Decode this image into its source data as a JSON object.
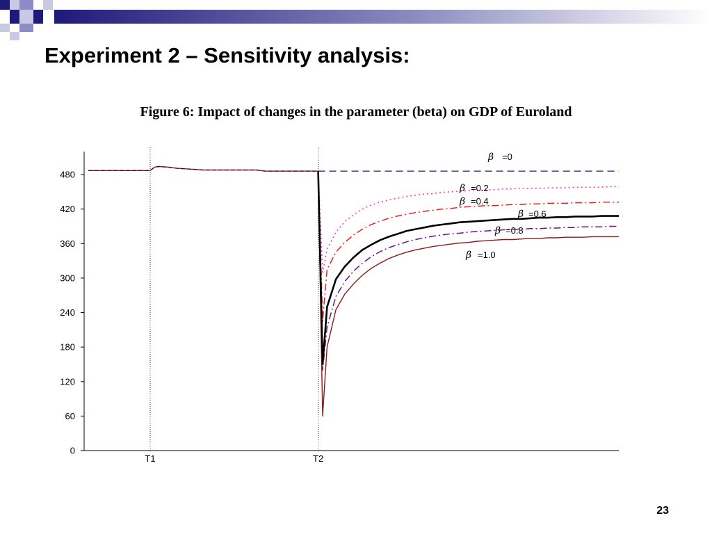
{
  "slide": {
    "title": "Experiment 2 – Sensitivity analysis:",
    "caption": "Figure 6: Impact of changes in the parameter (beta) on GDP of  Euroland",
    "page_number": "23",
    "colors": {
      "deco_dark": "#1f1a7a",
      "deco_mid": "#8c8cc8",
      "deco_light": "#c9c9e6"
    }
  },
  "chart_data": {
    "type": "line",
    "title": "",
    "xlabel": "",
    "ylabel": "",
    "ylim": [
      0,
      520
    ],
    "xlim": [
      0,
      60
    ],
    "yticks": [
      0,
      60,
      120,
      180,
      240,
      300,
      360,
      420,
      480
    ],
    "xticks": [
      {
        "x": 7,
        "label": "T1"
      },
      {
        "x": 26,
        "label": "T2"
      }
    ],
    "grid": false,
    "baseline": {
      "x": [
        0,
        1,
        2,
        3,
        4,
        5,
        6,
        7,
        7.5,
        8,
        9,
        10,
        11,
        12,
        13,
        14,
        15,
        16,
        17,
        18,
        19,
        20,
        21,
        22,
        23,
        24,
        25,
        26
      ],
      "y": [
        487,
        487,
        487,
        487,
        487,
        487,
        487,
        487,
        493,
        494,
        493,
        491,
        490,
        489,
        488,
        488,
        488,
        488,
        488,
        488,
        488,
        486,
        486,
        486,
        486,
        486,
        486,
        486
      ]
    },
    "series": [
      {
        "name": "=0",
        "color": "#1a1a8c",
        "width": 1.3,
        "dash": "10,6",
        "x": [
          26,
          60
        ],
        "y": [
          486,
          486
        ]
      },
      {
        "name": "=0.2",
        "color": "#ff33cc",
        "width": 1.6,
        "dash": "2,4",
        "x": [
          26,
          26.5,
          27,
          28,
          29,
          30,
          31,
          32,
          33,
          34,
          35,
          36,
          37,
          38,
          39,
          40,
          41,
          42,
          43,
          44,
          45,
          46,
          47,
          48,
          49,
          50,
          51,
          52,
          53,
          54,
          55,
          56,
          57,
          58,
          59,
          60
        ],
        "y": [
          486,
          310,
          350,
          380,
          398,
          410,
          420,
          427,
          432,
          436,
          439,
          442,
          444,
          446,
          447,
          449,
          450,
          451,
          452,
          453,
          453,
          454,
          455,
          455,
          456,
          456,
          456,
          457,
          457,
          457,
          458,
          458,
          458,
          458,
          459,
          459
        ]
      },
      {
        "name": "=0.4",
        "color": "#e8201a",
        "width": 1.5,
        "dash": "10,4,2,4",
        "x": [
          26,
          26.5,
          27,
          28,
          29,
          30,
          31,
          32,
          33,
          34,
          35,
          36,
          37,
          38,
          39,
          40,
          41,
          42,
          43,
          44,
          45,
          46,
          47,
          48,
          49,
          50,
          51,
          52,
          53,
          54,
          55,
          56,
          57,
          58,
          59,
          60
        ],
        "y": [
          486,
          225,
          315,
          345,
          362,
          375,
          385,
          393,
          399,
          404,
          408,
          411,
          414,
          416,
          418,
          420,
          421,
          423,
          424,
          425,
          426,
          426,
          427,
          428,
          428,
          429,
          429,
          430,
          430,
          430,
          431,
          431,
          431,
          432,
          432,
          432
        ]
      },
      {
        "name": "=0.6",
        "color": "#000000",
        "width": 2.6,
        "dash": "",
        "x": [
          26,
          26.5,
          27,
          28,
          29,
          30,
          31,
          32,
          33,
          34,
          35,
          36,
          37,
          38,
          39,
          40,
          41,
          42,
          43,
          44,
          45,
          46,
          47,
          48,
          49,
          50,
          51,
          52,
          53,
          54,
          55,
          56,
          57,
          58,
          59,
          60
        ],
        "y": [
          486,
          150,
          250,
          298,
          320,
          336,
          349,
          358,
          366,
          372,
          377,
          382,
          385,
          388,
          391,
          393,
          395,
          397,
          398,
          399,
          400,
          401,
          402,
          403,
          403,
          404,
          405,
          405,
          406,
          406,
          407,
          407,
          407,
          408,
          408,
          408
        ]
      },
      {
        "name": "=0.8",
        "color": "#6a1090",
        "width": 1.5,
        "dash": "10,4,2,4",
        "x": [
          26,
          26.5,
          27,
          28,
          29,
          30,
          31,
          32,
          33,
          34,
          35,
          36,
          37,
          38,
          39,
          40,
          41,
          42,
          43,
          44,
          45,
          46,
          47,
          48,
          49,
          50,
          51,
          52,
          53,
          54,
          55,
          56,
          57,
          58,
          59,
          60
        ],
        "y": [
          486,
          140,
          215,
          268,
          294,
          312,
          326,
          337,
          346,
          353,
          358,
          363,
          367,
          370,
          373,
          375,
          377,
          378,
          380,
          381,
          382,
          383,
          384,
          385,
          385,
          386,
          386,
          387,
          387,
          388,
          388,
          389,
          389,
          389,
          390,
          390
        ]
      },
      {
        "name": "=1.0",
        "color": "#8b1a1a",
        "width": 1.4,
        "dash": "",
        "x": [
          26,
          26.5,
          27,
          28,
          29,
          30,
          31,
          32,
          33,
          34,
          35,
          36,
          37,
          38,
          39,
          40,
          41,
          42,
          43,
          44,
          45,
          46,
          47,
          48,
          49,
          50,
          51,
          52,
          53,
          54,
          55,
          56,
          57,
          58,
          59,
          60
        ],
        "y": [
          486,
          60,
          180,
          245,
          272,
          290,
          305,
          317,
          326,
          334,
          340,
          345,
          349,
          352,
          355,
          357,
          359,
          361,
          362,
          364,
          365,
          366,
          367,
          367,
          368,
          369,
          369,
          370,
          370,
          371,
          371,
          371,
          372,
          372,
          372,
          372
        ]
      }
    ],
    "beta_symbol": "β"
  }
}
